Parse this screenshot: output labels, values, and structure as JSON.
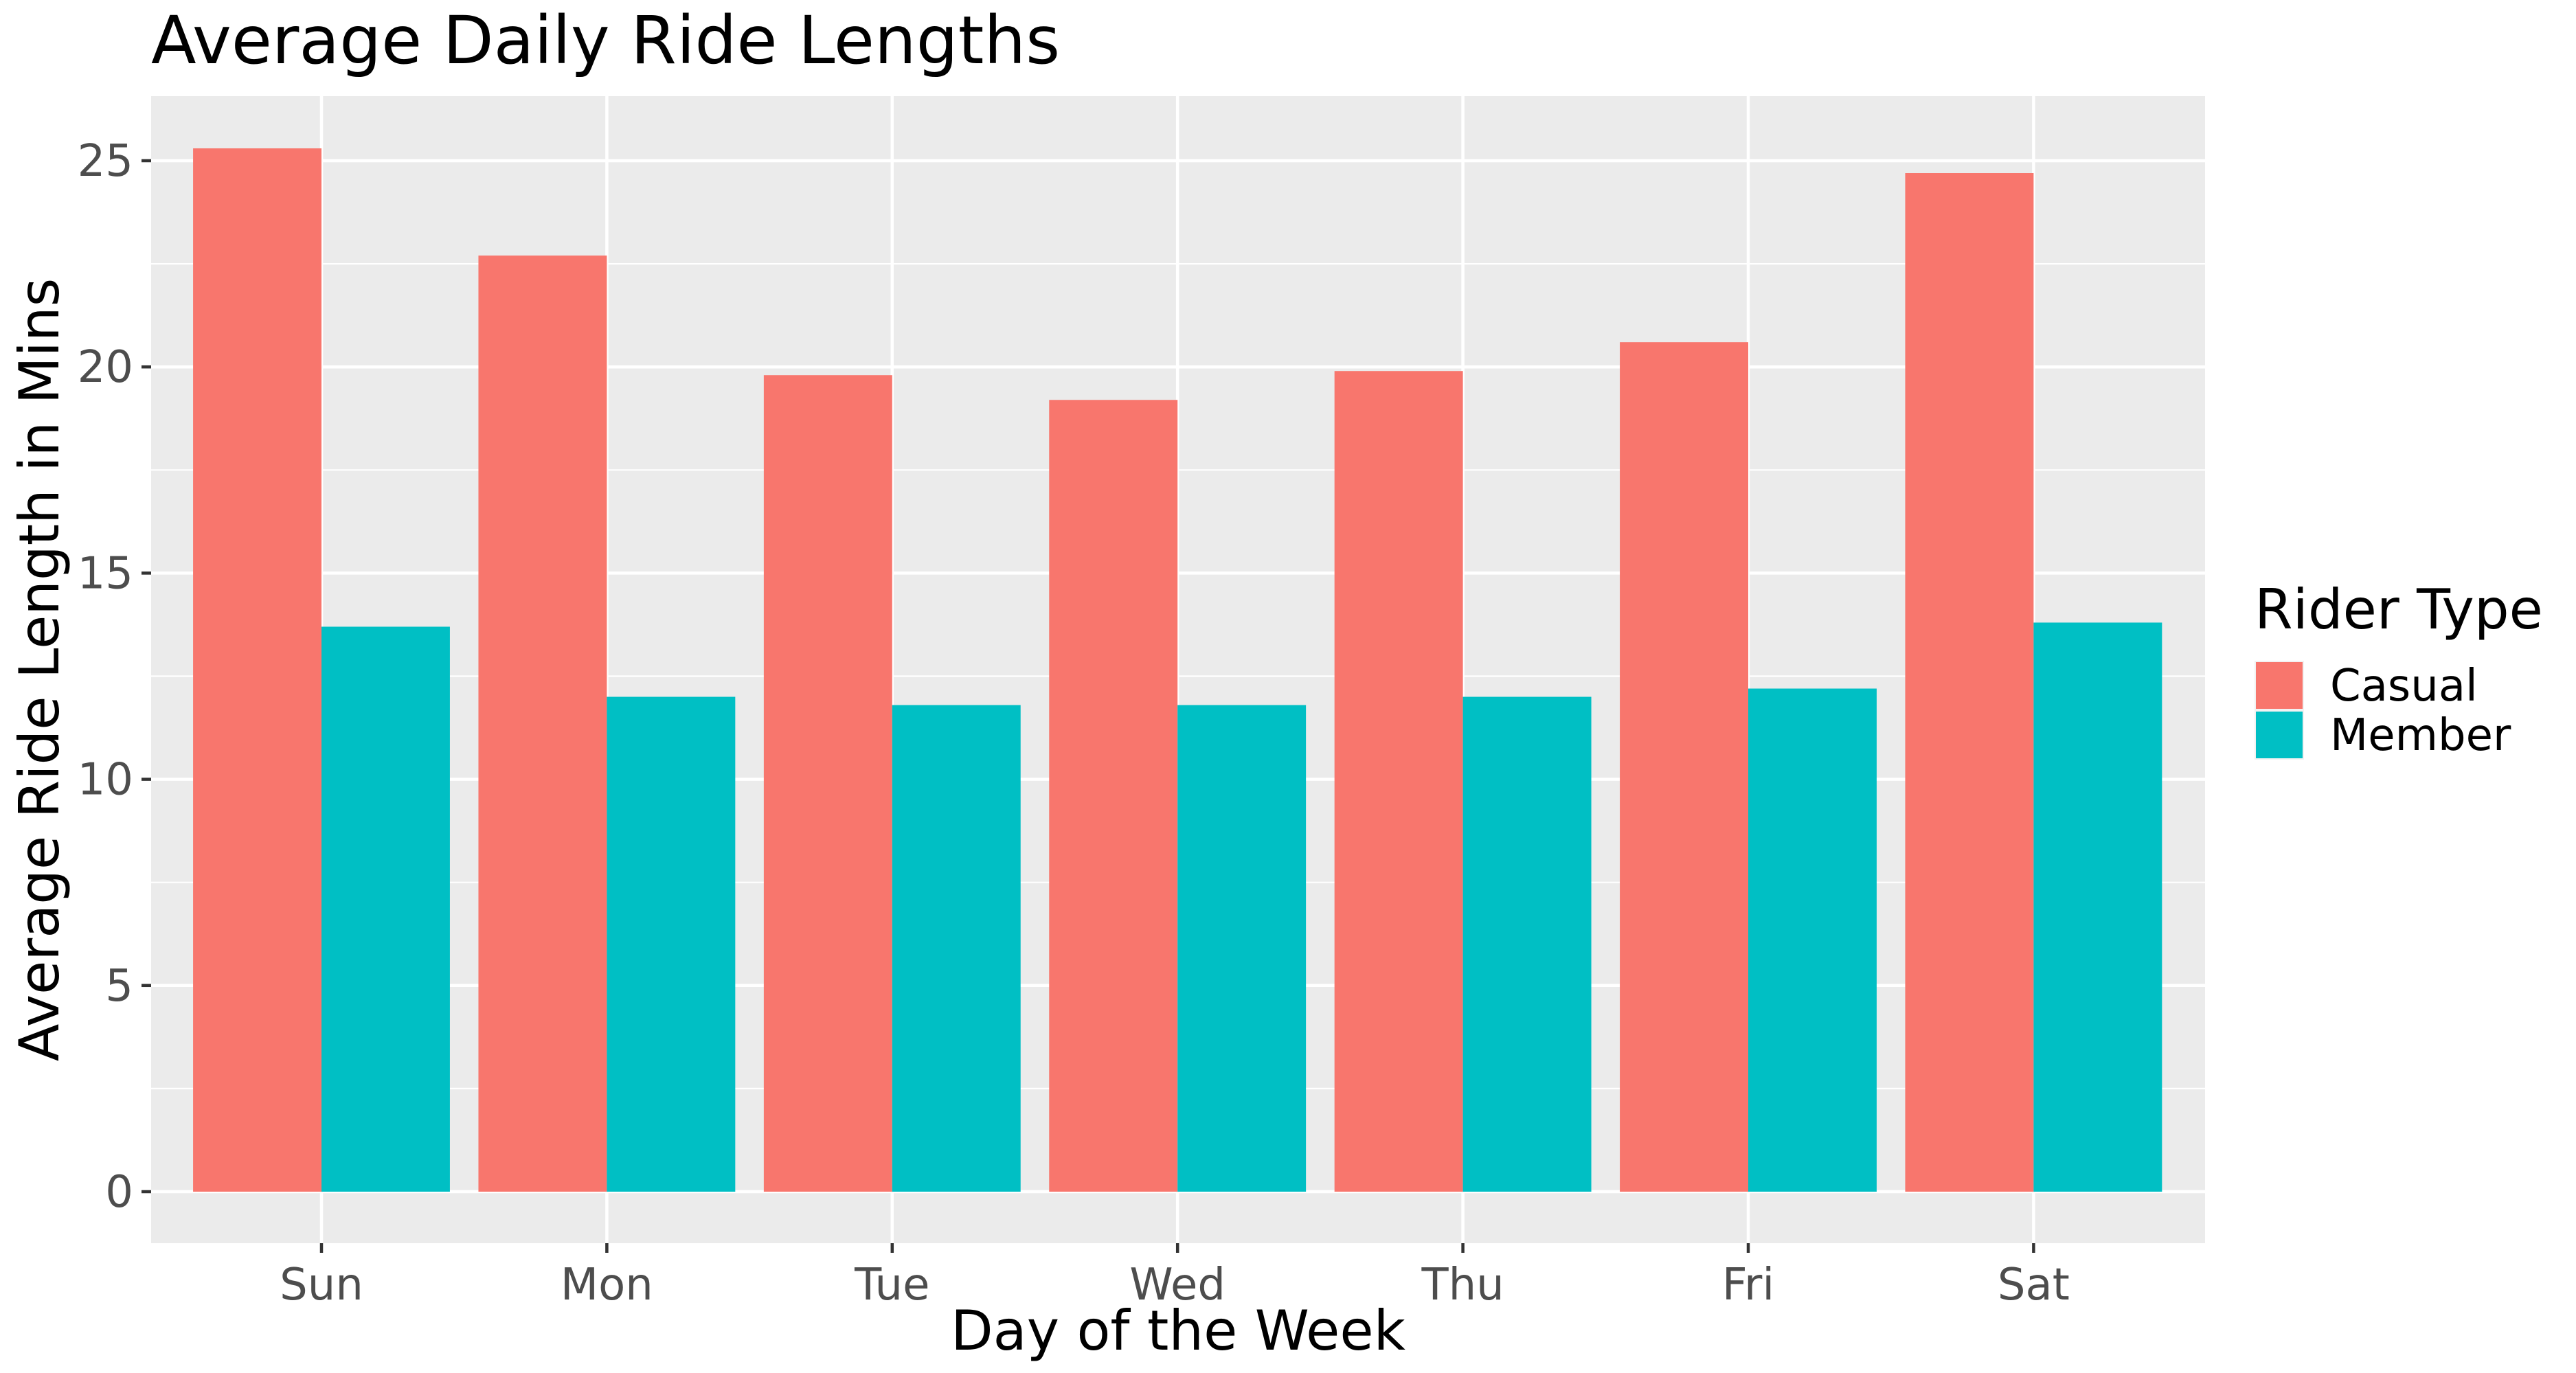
{
  "chart_data": {
    "type": "bar",
    "title": "Average Daily Ride Lengths",
    "xlabel": "Day of the Week",
    "ylabel": "Average Ride Length in Mins",
    "categories": [
      "Sun",
      "Mon",
      "Tue",
      "Wed",
      "Thu",
      "Fri",
      "Sat"
    ],
    "series": [
      {
        "name": "Casual",
        "color": "#F8766D",
        "values": [
          25.3,
          22.7,
          19.8,
          19.2,
          19.9,
          20.6,
          24.7
        ]
      },
      {
        "name": "Member",
        "color": "#00BFC4",
        "values": [
          13.7,
          12.0,
          11.8,
          11.8,
          12.0,
          12.2,
          13.8
        ]
      }
    ],
    "ylim": [
      0,
      26.5
    ],
    "yticks": [
      0,
      5,
      10,
      15,
      20,
      25
    ],
    "ytick_labels": [
      "0",
      "5",
      "10",
      "15",
      "20",
      "25"
    ],
    "grid": true,
    "legend": {
      "title": "Rider Type",
      "position": "right"
    }
  }
}
